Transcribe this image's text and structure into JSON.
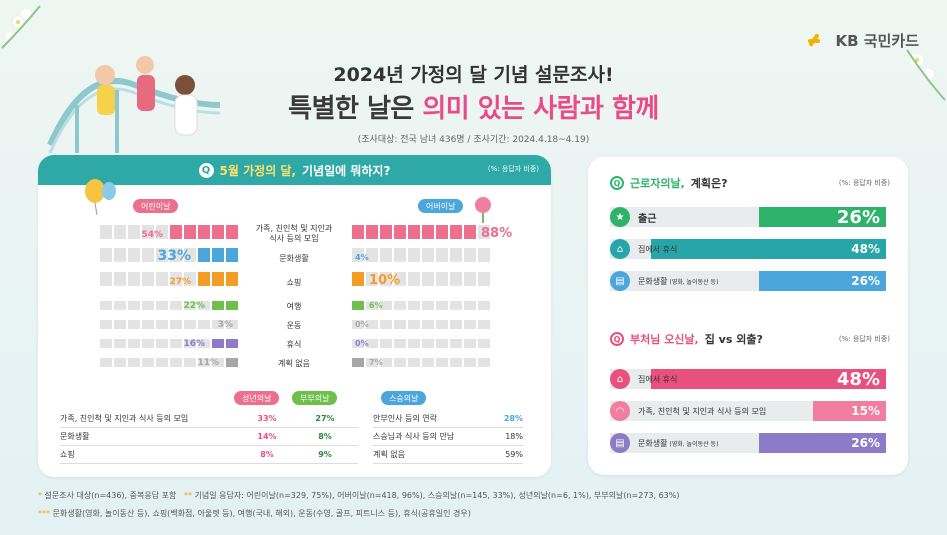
{
  "brand": {
    "name": "KB 국민카드"
  },
  "header": {
    "title1": "2024년 가정의 달 기념 설문조사!",
    "title2_prefix": "특별한 날은",
    "title2_highlight": "의미 있는 사람과 함께",
    "survey_info": "(조사대상: 전국 남녀 436명 / 조사기간: 2024.4.18~4.19)"
  },
  "left_panel": {
    "question_prefix": "5월 가정의 달,",
    "question_rest": "기념일에 뭐하지?",
    "note": "(%: 응답자 비중)",
    "left_tag": "어린이날",
    "right_tag": "어버이날",
    "colors": {
      "pink": "#ec6f8e",
      "blue": "#4ba6dc",
      "orange": "#f39c26",
      "green": "#6fbf4c",
      "gray": "#a7a7a7",
      "purple": "#8c7cc8",
      "empty": "#e3e3e3"
    }
  },
  "chart_data": {
    "type": "bar",
    "title": "5월 가정의 달, 기념일에 뭐하지?",
    "categories": [
      "가족, 친인척 및 지인과 식사 등의 모임",
      "문화생활",
      "쇼핑",
      "여행",
      "운동",
      "휴식",
      "계획 없음"
    ],
    "series": [
      {
        "name": "어린이날",
        "values": [
          54,
          33,
          27,
          22,
          3,
          16,
          11
        ]
      },
      {
        "name": "어버이날",
        "values": [
          88,
          4,
          10,
          6,
          0,
          0,
          7
        ]
      }
    ],
    "value_labels": {
      "left": [
        "54%",
        "33%",
        "27%",
        "22%",
        "3%",
        "16%",
        "11%"
      ],
      "right": [
        "88%",
        "4%",
        "10%",
        "6%",
        "0%",
        "0%",
        "7%"
      ]
    },
    "unit": "%"
  },
  "sub_tables": {
    "couple": {
      "headers": [
        "성년의날",
        "부부의날"
      ],
      "rows": [
        {
          "label": "가족, 친인척 및 지인과 식사 등의 모임",
          "values": [
            "33%",
            "27%"
          ]
        },
        {
          "label": "문화생활",
          "values": [
            "14%",
            "8%"
          ]
        },
        {
          "label": "쇼핑",
          "values": [
            "8%",
            "9%"
          ]
        }
      ]
    },
    "teacher": {
      "header": "스승의날",
      "rows": [
        {
          "label": "안부인사 등의 연락",
          "value": "28%"
        },
        {
          "label": "스승님과 식사 등의 만남",
          "value": "18%"
        },
        {
          "label": "계획 없음",
          "value": "59%"
        }
      ]
    }
  },
  "right_panel": {
    "q1": {
      "prefix": "근로자의날,",
      "rest": "계획은?",
      "note": "(%: 응답자 비중)",
      "rows": [
        {
          "label": "출근",
          "value": 26,
          "value_label": "26%",
          "color": "#2fb36a",
          "icon": "running-person-icon"
        },
        {
          "label": "집에서 휴식",
          "value": 48,
          "value_label": "48%",
          "color": "#26a6a8",
          "icon": "house-icon"
        },
        {
          "label": "문화생활",
          "sublabel": "(영화, 놀이동산 등)",
          "value": 26,
          "value_label": "26%",
          "color": "#4ba6dc",
          "icon": "ticket-icon"
        }
      ]
    },
    "q2": {
      "prefix": "부처님 오신날,",
      "rest": "집 vs 외출?",
      "note": "(%: 응답자 비중)",
      "rows": [
        {
          "label": "집에서 휴식",
          "value": 48,
          "value_label": "48%",
          "color": "#e8507e",
          "icon": "house-icon"
        },
        {
          "label": "가족, 친인척 및 지인과 식사 등의 모임",
          "value": 15,
          "value_label": "15%",
          "color": "#f07ea0",
          "icon": "dish-icon"
        },
        {
          "label": "문화생활",
          "sublabel": "(영화, 놀이동산 등)",
          "value": 26,
          "value_label": "26%",
          "color": "#8c7cc8",
          "icon": "ticket-icon"
        }
      ]
    }
  },
  "footnotes": {
    "line1_a": "설문조사 대상(n=436), 중복응답 포함",
    "line1_b": "기념일 응답자: 어린이날(n=329, 75%), 어버이날(n=418, 96%), 스승의날(n=145, 33%), 성년의날(n=6, 1%), 부부의날(n=273, 63%)",
    "line2": "문화생활(영화, 놀이동산 등), 쇼핑(백화점, 아울렛 등), 여행(국내, 해외), 운동(수영, 골프, 피트니스 등), 휴식(공휴일인 경우)"
  }
}
